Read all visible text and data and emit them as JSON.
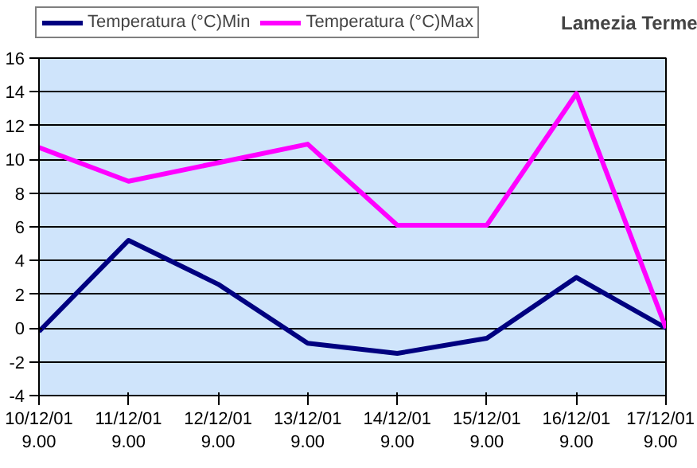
{
  "chart_data": {
    "type": "line",
    "title": "Lamezia Terme",
    "categories": [
      "10/12/01\n9.00",
      "11/12/01\n9.00",
      "12/12/01\n9.00",
      "13/12/01\n9.00",
      "14/12/01\n9.00",
      "15/12/01\n9.00",
      "16/12/01\n9.00",
      "17/12/01\n9.00"
    ],
    "series": [
      {
        "name": "Temperatura (°C)Min",
        "color": "#000080",
        "values": [
          -0.2,
          5.2,
          2.6,
          -0.9,
          -1.5,
          -0.6,
          3.0,
          0.0
        ]
      },
      {
        "name": "Temperatura (°C)Max",
        "color": "#ff00ff",
        "values": [
          10.7,
          8.7,
          9.8,
          10.9,
          6.1,
          6.1,
          13.9,
          0.0
        ]
      }
    ],
    "ylim": [
      -4,
      16
    ],
    "yticks": [
      -4,
      -2,
      0,
      2,
      4,
      6,
      8,
      10,
      12,
      14,
      16
    ],
    "grid": "y",
    "legend": "top left",
    "marker": "none",
    "line_style": "solid"
  }
}
